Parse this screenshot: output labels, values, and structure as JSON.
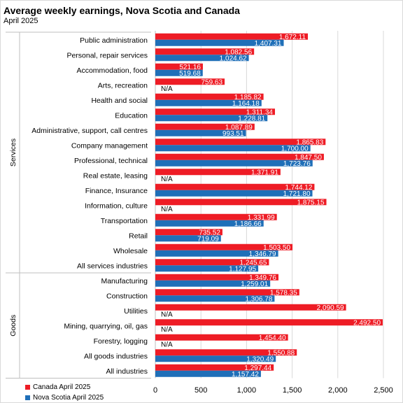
{
  "title": "Average weekly earnings, Nova Scotia and Canada",
  "subtitle": "April 2025",
  "colors": {
    "canada": "#ee1c25",
    "nova_scotia": "#1f6fb8"
  },
  "chart_data": {
    "type": "bar",
    "orientation": "horizontal",
    "categories": [
      "Public administration",
      "Personal, repair services",
      "Accommodation, food",
      "Arts, recreation",
      "Health and social",
      "Education",
      "Administrative, support, call centres",
      "Company management",
      "Professional, technical",
      "Real estate, leasing",
      "Finance, Insurance",
      "Information, culture",
      "Transportation",
      "Retail",
      "Wholesale",
      "All services industries",
      "Manufacturing",
      "Construction",
      "Utilities",
      "Mining, quarrying, oil, gas",
      "Forestry, logging",
      "All goods industries",
      "All industries"
    ],
    "groups": [
      {
        "label": "Services",
        "from": 0,
        "to": 15
      },
      {
        "label": "Goods",
        "from": 16,
        "to": 22
      }
    ],
    "series": [
      {
        "name": "Canada April 2025",
        "values": [
          1672.11,
          1082.56,
          521.16,
          759.63,
          1185.82,
          1311.34,
          1087.89,
          1865.83,
          1847.5,
          1371.91,
          1744.12,
          1875.15,
          1331.99,
          735.52,
          1503.5,
          1245.65,
          1349.76,
          1578.35,
          2090.59,
          2492.5,
          1454.4,
          1550.88,
          1297.44
        ],
        "labels": [
          "1,672.11",
          "1,082.56",
          "521.16",
          "759.63",
          "1,185.82",
          "1,311.34",
          "1,087.89",
          "1,865.83",
          "1,847.50",
          "1,371.91",
          "1,744.12",
          "1,875.15",
          "1,331.99",
          "735.52",
          "1,503.50",
          "1,245.65",
          "1,349.76",
          "1,578.35",
          "2,090.59",
          "2,492.50",
          "1,454.40",
          "1,550.88",
          "1,297.44"
        ]
      },
      {
        "name": "Nova Scotia April 2025",
        "values": [
          1407.31,
          1024.62,
          519.68,
          null,
          1164.18,
          1228.81,
          993.51,
          1700.0,
          1723.76,
          null,
          1721.8,
          null,
          1186.66,
          719.09,
          1346.79,
          1127.95,
          1259.01,
          1306.78,
          null,
          null,
          null,
          1320.49,
          1157.42
        ],
        "labels": [
          "1,407.31",
          "1,024.62",
          "519.68",
          "N/A",
          "1,164.18",
          "1,228.81",
          "993.51",
          "1,700.00",
          "1,723.76",
          "N/A",
          "1,721.80",
          "N/A",
          "1,186.66",
          "719.09",
          "1,346.79",
          "1,127.95",
          "1,259.01",
          "1,306.78",
          "N/A",
          "N/A",
          "N/A",
          "1,320.49",
          "1,157.42"
        ]
      }
    ],
    "xlim": [
      0,
      2500
    ],
    "xticks": [
      0,
      500,
      1000,
      1500,
      2000,
      2500
    ],
    "xtick_labels": [
      "0",
      "500",
      "1,000",
      "1,500",
      "2,000",
      "2,500"
    ],
    "grid": true,
    "legend": "bottom-left"
  }
}
